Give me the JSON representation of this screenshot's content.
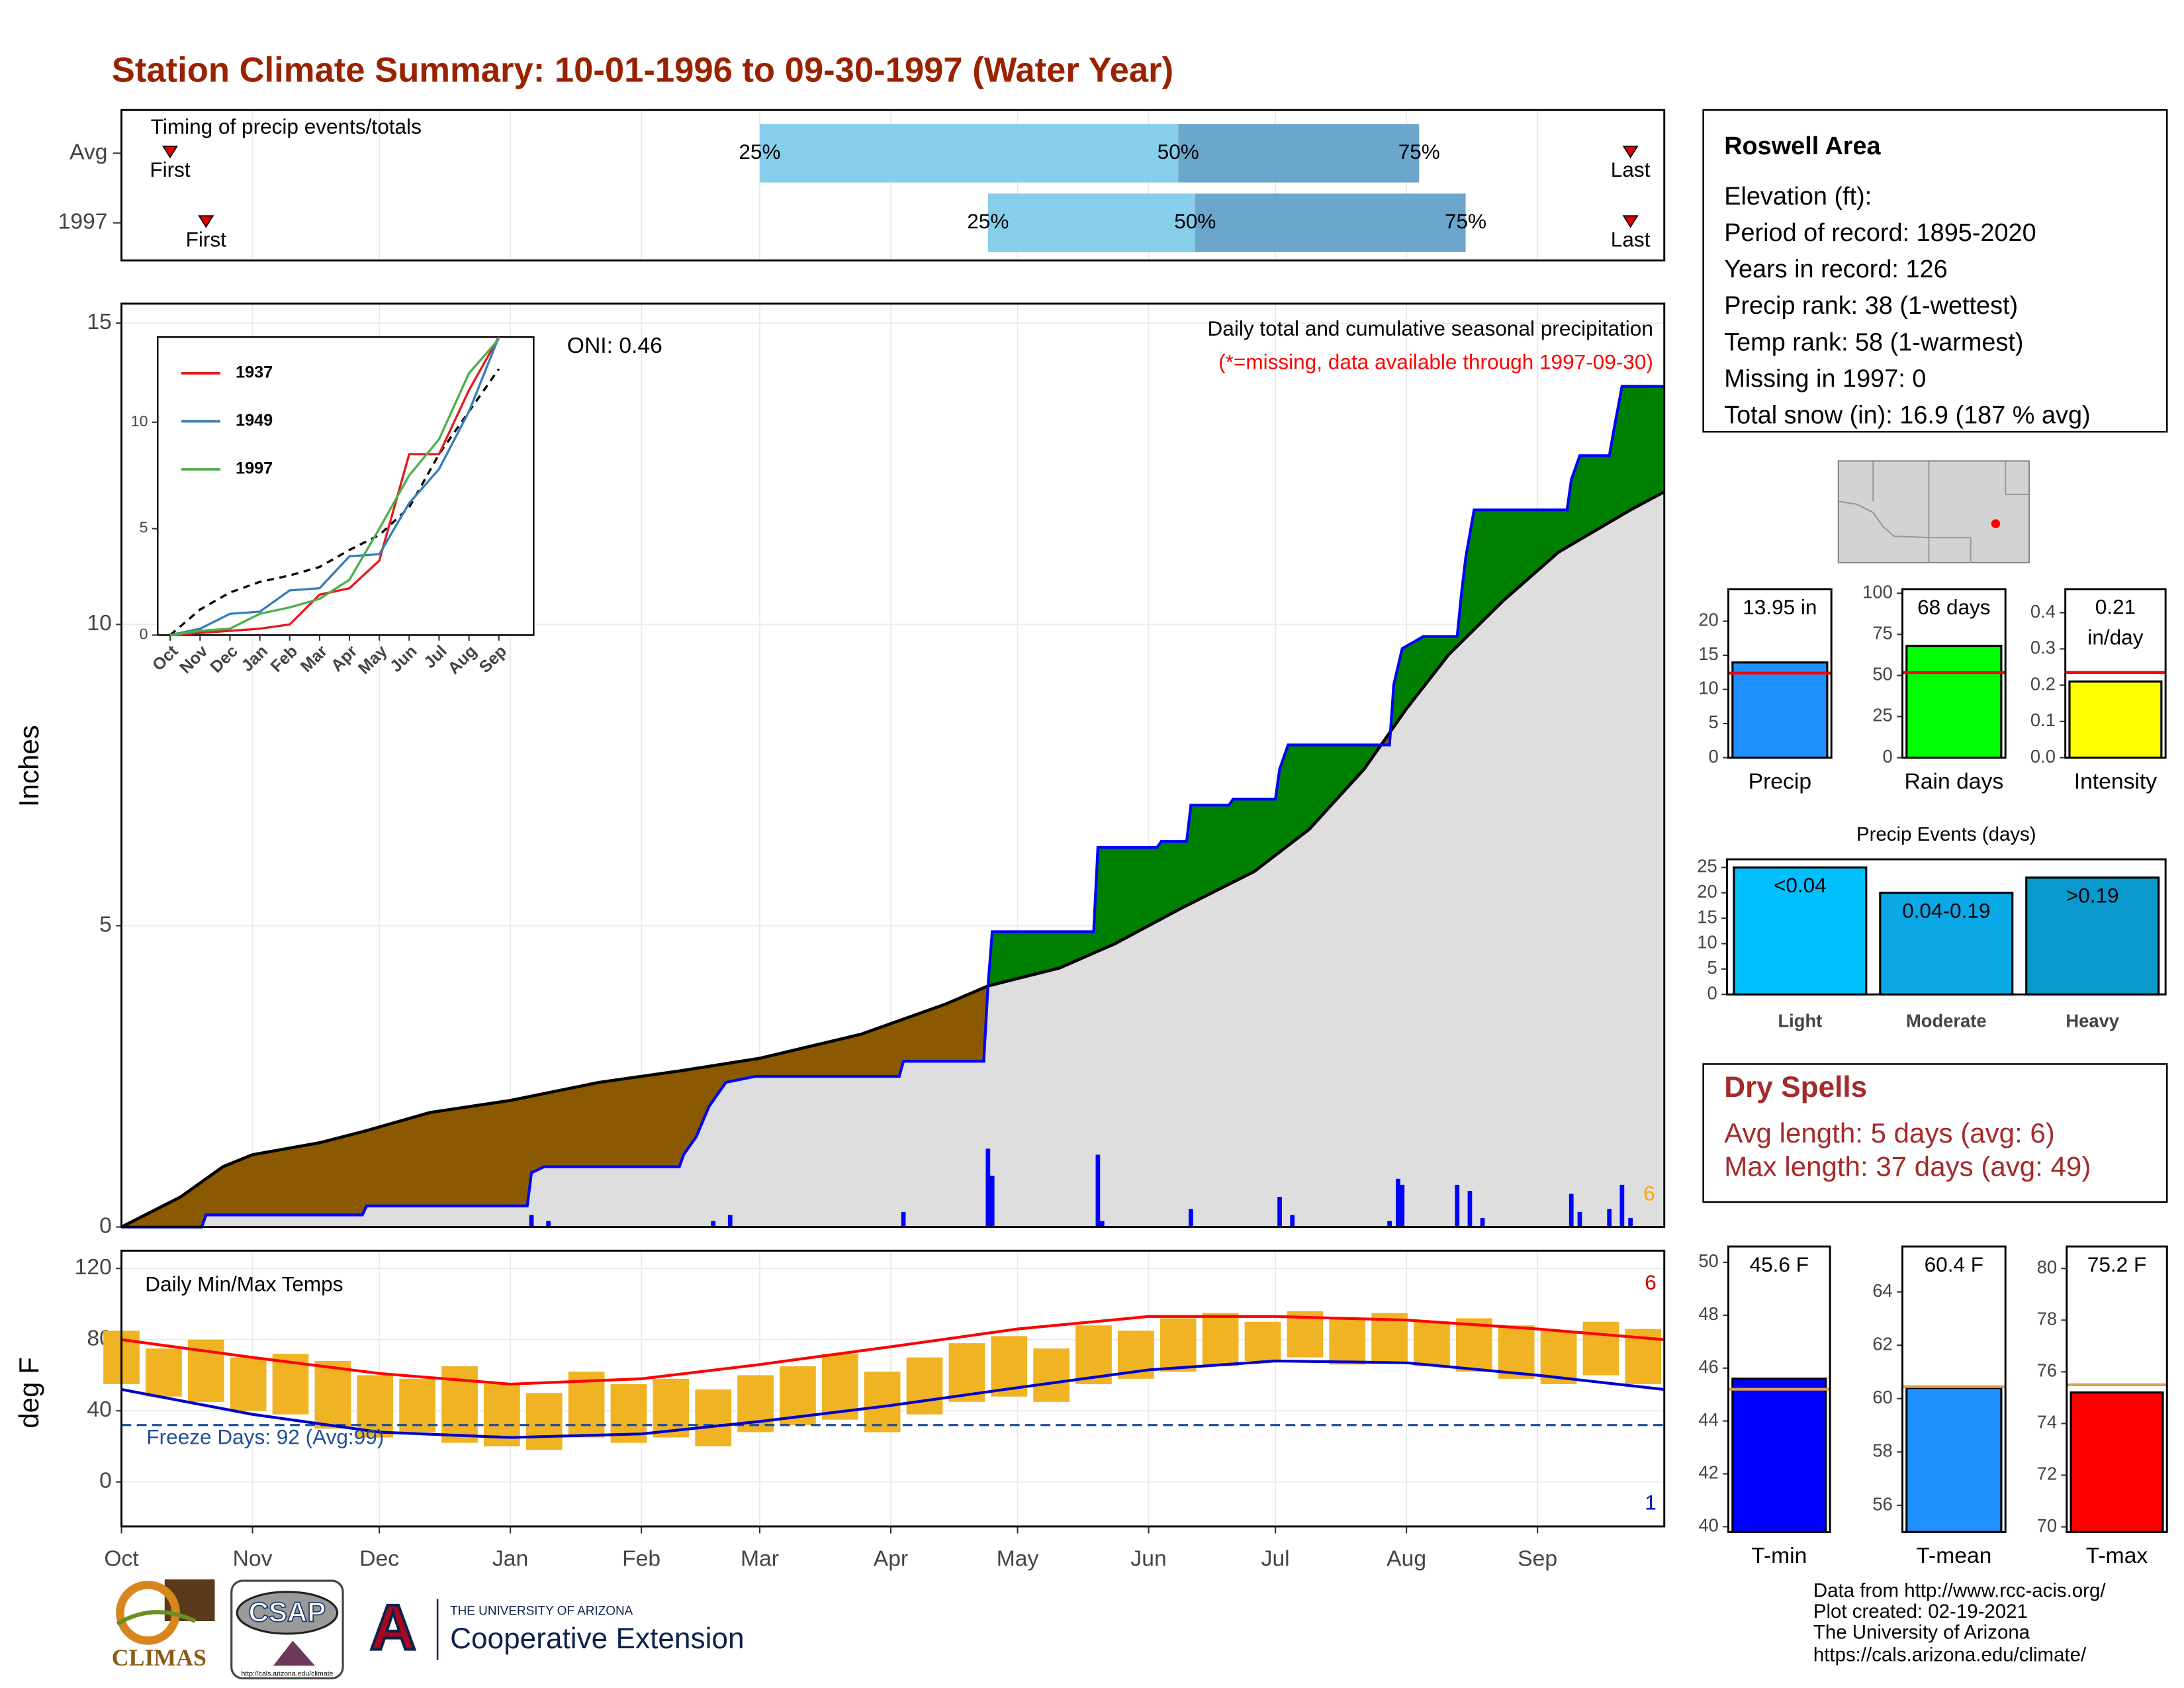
{
  "title": "Station Climate Summary: 10-01-1996 to 09-30-1997 (Water Year)",
  "station_info": {
    "name": "Roswell Area",
    "lines": [
      "Elevation (ft):",
      "Period of record: 1895-2020",
      "Years in record: 126",
      "Precip rank: 38 (1-wettest)",
      "Temp rank: 58 (1-warmest)",
      "Missing in 1997: 0",
      "Total snow (in): 16.9 (187 % avg)"
    ]
  },
  "dry_spells": {
    "title": "Dry Spells",
    "lines": [
      "Avg length: 5 days (avg: 6)",
      "Max length: 37 days (avg: 49)"
    ]
  },
  "footer": {
    "lines": [
      "Data from http://www.rcc-acis.org/",
      "Plot created: 02-19-2021",
      "The University of Arizona",
      "https://cals.arizona.edu/climate/"
    ]
  },
  "logos": {
    "climas": "CLIMAS",
    "csap": "CSAP",
    "csap_url": "http://cals.arizona.edu/climate",
    "ua": "THE UNIVERSITY OF ARIZONA",
    "extension": "Cooperative Extension"
  },
  "chart_data": [
    {
      "type": "timing",
      "title": "Timing of precip events/totals",
      "categories": [
        "Avg",
        "1997"
      ],
      "xlim": [
        0,
        365
      ],
      "marker_labels": {
        "first": "First",
        "last": "Last",
        "q25": "25%",
        "q50": "50%",
        "q75": "75%"
      },
      "rows": [
        {
          "first": 11.5,
          "q25": 151,
          "q50": 250,
          "q75": 307,
          "last": 357
        },
        {
          "first": 20,
          "q25": 205,
          "q50": 254,
          "q75": 318,
          "last": 357
        }
      ],
      "colors": [
        "#87ceeb",
        "#6ca6cd"
      ]
    },
    {
      "type": "area",
      "title": "Daily total and cumulative seasonal precipitation",
      "subtitle": "(*=missing, data available through 1997-09-30)",
      "annotation": "ONI: 0.46",
      "ylabel": "Inches",
      "record_label": "6",
      "xlim": [
        0,
        365
      ],
      "ylim": [
        0,
        15
      ],
      "yticks": [
        0,
        5,
        10,
        15
      ],
      "grid": true,
      "above_color": "#008000",
      "below_color": "#8b5a00",
      "fill_color": "#dedede",
      "average": {
        "color": "#000000",
        "x": [
          0,
          14,
          24,
          31,
          47,
          58,
          73,
          92,
          113,
          133,
          151,
          175,
          195,
          205,
          222,
          235,
          251,
          268,
          281,
          294,
          304,
          314,
          327,
          340,
          357,
          365
        ],
        "values": [
          0,
          0.5,
          1.0,
          1.2,
          1.4,
          1.6,
          1.9,
          2.1,
          2.4,
          2.6,
          2.8,
          3.2,
          3.7,
          4.0,
          4.3,
          4.7,
          5.3,
          5.9,
          6.6,
          7.6,
          8.6,
          9.5,
          10.4,
          11.2,
          11.9,
          12.2
        ]
      },
      "observed": {
        "color": "#0000ff",
        "x": [
          0,
          19,
          20,
          57,
          58,
          96,
          97,
          100,
          132,
          133,
          136,
          139,
          143,
          150,
          184,
          185,
          204,
          205,
          206,
          230,
          231,
          245,
          246,
          252,
          253,
          262,
          263,
          273,
          274,
          276,
          300,
          301,
          303,
          308,
          316,
          317,
          318,
          320,
          342,
          343,
          345,
          352,
          353,
          355,
          365
        ],
        "values": [
          0,
          0,
          0.2,
          0.2,
          0.35,
          0.35,
          0.9,
          1.0,
          1.0,
          1.2,
          1.5,
          2.0,
          2.4,
          2.5,
          2.5,
          2.75,
          2.75,
          4.0,
          4.9,
          4.9,
          6.3,
          6.3,
          6.4,
          6.4,
          7.0,
          7.0,
          7.1,
          7.1,
          7.6,
          8.0,
          8.0,
          9.0,
          9.6,
          9.8,
          9.8,
          10.5,
          11.1,
          11.9,
          11.9,
          12.4,
          12.8,
          12.8,
          13.2,
          13.95,
          13.95
        ]
      },
      "daily": {
        "color": "#0000ff",
        "x": [
          97,
          101,
          140,
          144,
          185,
          205,
          206,
          231,
          232,
          253,
          274,
          277,
          300,
          302,
          303,
          316,
          319,
          322,
          343,
          345,
          352,
          355,
          357
        ],
        "values": [
          0.2,
          0.1,
          0.1,
          0.2,
          0.25,
          1.3,
          0.85,
          1.2,
          0.1,
          0.3,
          0.5,
          0.2,
          0.1,
          0.8,
          0.7,
          0.7,
          0.6,
          0.15,
          0.55,
          0.25,
          0.3,
          0.7,
          0.15
        ]
      }
    },
    {
      "type": "line",
      "categories": [
        "Oct",
        "Nov",
        "Dec",
        "Jan",
        "Feb",
        "Mar",
        "Apr",
        "May",
        "Jun",
        "Jul",
        "Aug",
        "Sep"
      ],
      "ylim": [
        0,
        14
      ],
      "yticks": [
        0,
        5,
        10
      ],
      "series": [
        {
          "name": "1937",
          "color": "#e41a1c",
          "values": [
            0,
            0.1,
            0.2,
            0.3,
            0.5,
            1.9,
            2.2,
            3.5,
            8.5,
            8.5,
            11.5,
            14.0
          ]
        },
        {
          "name": "1949",
          "color": "#377eb8",
          "values": [
            0,
            0.3,
            1.0,
            1.1,
            2.1,
            2.2,
            3.7,
            3.8,
            6.2,
            7.8,
            10.5,
            14.0
          ]
        },
        {
          "name": "1997",
          "color": "#4daf4a",
          "values": [
            0,
            0.2,
            0.3,
            1.0,
            1.3,
            1.7,
            2.6,
            5.0,
            7.5,
            9.2,
            12.3,
            13.9
          ]
        }
      ],
      "average": {
        "color": "#000000",
        "values": [
          0,
          1.2,
          2.0,
          2.5,
          2.8,
          3.2,
          4.0,
          4.7,
          6.0,
          8.5,
          10.5,
          12.5
        ]
      }
    },
    {
      "type": "range",
      "title": "Daily Min/Max Temps",
      "ylabel": "deg F",
      "annotation": "Freeze Days: 92 (Avg:99)",
      "record_high_label": "6",
      "record_low_label": "1",
      "xlim": [
        0,
        365
      ],
      "xticks": [
        {
          "value": 0,
          "label": "Oct"
        },
        {
          "value": 31,
          "label": "Nov"
        },
        {
          "value": 61,
          "label": "Dec"
        },
        {
          "value": 92,
          "label": "Jan"
        },
        {
          "value": 123,
          "label": "Feb"
        },
        {
          "value": 151,
          "label": "Mar"
        },
        {
          "value": 182,
          "label": "Apr"
        },
        {
          "value": 212,
          "label": "May"
        },
        {
          "value": 243,
          "label": "Jun"
        },
        {
          "value": 273,
          "label": "Jul"
        },
        {
          "value": 304,
          "label": "Aug"
        },
        {
          "value": 335,
          "label": "Sep"
        }
      ],
      "ylim": [
        -25,
        130
      ],
      "yticks": [
        0,
        40,
        80,
        120
      ],
      "grid": true,
      "reference_line": 32,
      "reference_color": "#1f4e9a",
      "daily": {
        "color": "#f0b323",
        "x": [
          0,
          10,
          20,
          30,
          40,
          50,
          60,
          70,
          80,
          90,
          100,
          110,
          120,
          130,
          140,
          150,
          160,
          170,
          180,
          190,
          200,
          210,
          220,
          230,
          240,
          250,
          260,
          270,
          280,
          290,
          300,
          310,
          320,
          330,
          340,
          350,
          360
        ],
        "max": [
          85,
          75,
          80,
          70,
          72,
          68,
          60,
          58,
          65,
          55,
          50,
          62,
          55,
          58,
          52,
          60,
          65,
          72,
          62,
          70,
          78,
          82,
          75,
          88,
          85,
          92,
          95,
          90,
          96,
          92,
          95,
          90,
          92,
          88,
          85,
          90,
          86
        ],
        "min": [
          55,
          48,
          45,
          40,
          38,
          30,
          25,
          28,
          22,
          20,
          18,
          25,
          22,
          25,
          20,
          28,
          32,
          35,
          28,
          38,
          45,
          48,
          45,
          55,
          58,
          62,
          65,
          68,
          70,
          66,
          68,
          65,
          62,
          58,
          55,
          60,
          55
        ]
      },
      "avg_max": {
        "color": "#ff0000",
        "x": [
          0,
          31,
          61,
          92,
          123,
          151,
          182,
          212,
          243,
          273,
          304,
          335,
          365
        ],
        "values": [
          80,
          70,
          61,
          55,
          58,
          66,
          76,
          86,
          93,
          93,
          91,
          86,
          80
        ]
      },
      "avg_min": {
        "color": "#0000cd",
        "x": [
          0,
          31,
          61,
          92,
          123,
          151,
          182,
          212,
          243,
          273,
          304,
          335,
          365
        ],
        "values": [
          52,
          38,
          28,
          25,
          27,
          34,
          43,
          53,
          63,
          68,
          67,
          60,
          52
        ]
      }
    },
    {
      "type": "bar",
      "categories": [
        "Precip"
      ],
      "values": [
        13.95
      ],
      "value_labels": [
        "13.95 in"
      ],
      "color": "#1e90ff",
      "average": 12.4,
      "average_color": "#ff0000",
      "ylim": [
        0,
        24.7
      ],
      "yticks": [
        0,
        5,
        10,
        15,
        20
      ]
    },
    {
      "type": "bar",
      "categories": [
        "Rain days"
      ],
      "values": [
        68
      ],
      "value_labels": [
        "68 days"
      ],
      "color": "#00ff00",
      "average": 51.7,
      "average_color": "#ff0000",
      "ylim": [
        0,
        102.5
      ],
      "yticks": [
        0,
        25,
        50,
        75,
        100
      ]
    },
    {
      "type": "bar",
      "categories": [
        "Intensity"
      ],
      "values": [
        0.21
      ],
      "value_labels": [
        "0.21 in/day"
      ],
      "color": "#ffff00",
      "average": 0.235,
      "average_color": "#ff0000",
      "ylim": [
        0,
        0.465
      ],
      "yticks": [
        {
          "value": 0,
          "label": "0.0"
        },
        0.1,
        0.2,
        0.3,
        0.4
      ]
    },
    {
      "type": "bar",
      "title": "Precip Events (days)",
      "categories": [
        "Light",
        "Moderate",
        "Heavy"
      ],
      "values": [
        25,
        20,
        23
      ],
      "bar_labels": [
        "<0.04",
        "0.04-0.19",
        ">0.19"
      ],
      "colors": [
        "#00bfff",
        "#0aa8e6",
        "#0a99cc"
      ],
      "ylim": [
        0,
        26.6
      ],
      "yticks": [
        0,
        5,
        10,
        15,
        20,
        25
      ]
    },
    {
      "type": "bar",
      "categories": [
        "T-min"
      ],
      "values": [
        45.6
      ],
      "value_labels": [
        "45.6 F"
      ],
      "color": "#0000ff",
      "average": 45.2,
      "average_color": "#e0a050",
      "ylim": [
        39.8,
        50.6
      ],
      "yticks": [
        40,
        42,
        44,
        46,
        48,
        50
      ]
    },
    {
      "type": "bar",
      "categories": [
        "T-mean"
      ],
      "values": [
        60.4
      ],
      "value_labels": [
        "60.4 F"
      ],
      "color": "#1e90ff",
      "average": 60.45,
      "average_color": "#e0a050",
      "ylim": [
        55,
        65.7
      ],
      "yticks": [
        56,
        58,
        60,
        62,
        64
      ]
    },
    {
      "type": "bar",
      "categories": [
        "T-max"
      ],
      "values": [
        75.2
      ],
      "value_labels": [
        "75.2 F"
      ],
      "color": "#ff0000",
      "average": 75.5,
      "average_color": "#e0a050",
      "ylim": [
        69.8,
        80.85
      ],
      "yticks": [
        70,
        72,
        74,
        76,
        78,
        80
      ]
    }
  ]
}
